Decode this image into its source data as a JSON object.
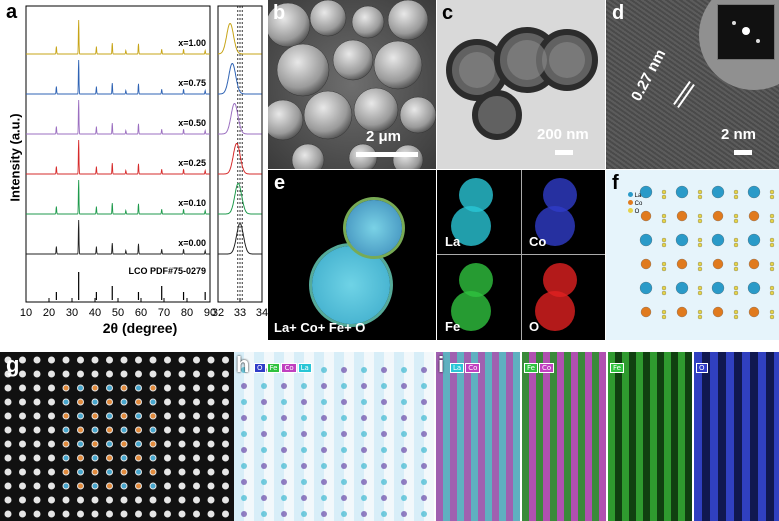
{
  "panels": {
    "a": "a",
    "b": "b",
    "c": "c",
    "d": "d",
    "e": "e",
    "f": "f",
    "g": "g",
    "h": "h",
    "i": "i"
  },
  "chart_data": {
    "type": "line",
    "ylabel": "Intensity (a.u.)",
    "xlabel": "2θ (degree)",
    "xlim": [
      10,
      90
    ],
    "x_ticks": [
      10,
      20,
      30,
      40,
      50,
      60,
      70,
      80,
      90
    ],
    "zoom_xlim": [
      32,
      34
    ],
    "zoom_ticks": [
      32,
      33,
      34
    ],
    "reference_label": "LCO PDF#75-0279",
    "reference_peaks": [
      23.2,
      32.9,
      40.6,
      47.5,
      58.9,
      69.0,
      78.5,
      87.9
    ],
    "peak_positions": [
      23.2,
      32.9,
      40.6,
      47.5,
      53.4,
      58.9,
      69.0,
      78.5,
      87.9
    ],
    "peak_heights": [
      0.22,
      1.0,
      0.22,
      0.32,
      0.1,
      0.3,
      0.14,
      0.14,
      0.1
    ],
    "series": [
      {
        "name": "x=1.00",
        "color": "#c7a417",
        "zoom_center": 32.55
      },
      {
        "name": "x=0.75",
        "color": "#2f63b4",
        "zoom_center": 32.65
      },
      {
        "name": "x=0.50",
        "color": "#9b6fc0",
        "zoom_center": 32.75
      },
      {
        "name": "x=0.25",
        "color": "#d62b2b",
        "zoom_center": 32.85
      },
      {
        "name": "x=0.10",
        "color": "#1f9a4c",
        "zoom_center": 32.92
      },
      {
        "name": "x=0.00",
        "color": "#222222",
        "zoom_center": 33.0
      }
    ],
    "reference_lines": [
      32.9,
      33.0,
      33.1
    ]
  },
  "micrographs": {
    "b_scale": "2 μm",
    "c_scale": "200 nm",
    "d_scale": "2 nm",
    "d_spacing": "0.27 nm"
  },
  "eds": {
    "combined": "La+ Co+ Fe+ O",
    "maps": [
      {
        "label": "La",
        "color": "#29c6d6"
      },
      {
        "label": "Co",
        "color": "#2f3cc8"
      },
      {
        "label": "Fe",
        "color": "#2fc23f"
      },
      {
        "label": "O",
        "color": "#e02020"
      }
    ]
  },
  "crystal": {
    "legend": [
      "La",
      "Co",
      "O"
    ],
    "colors": {
      "La": "#2a9ac8",
      "Co": "#e07a1e",
      "O": "#e6d44a"
    }
  },
  "stem": {
    "h_chips": [
      "O",
      "Fe",
      "Co",
      "La"
    ],
    "i_chips": [
      [
        "La",
        "Co"
      ],
      [
        "Fe",
        "Co"
      ],
      [
        "Fe"
      ],
      [
        "O"
      ]
    ]
  }
}
